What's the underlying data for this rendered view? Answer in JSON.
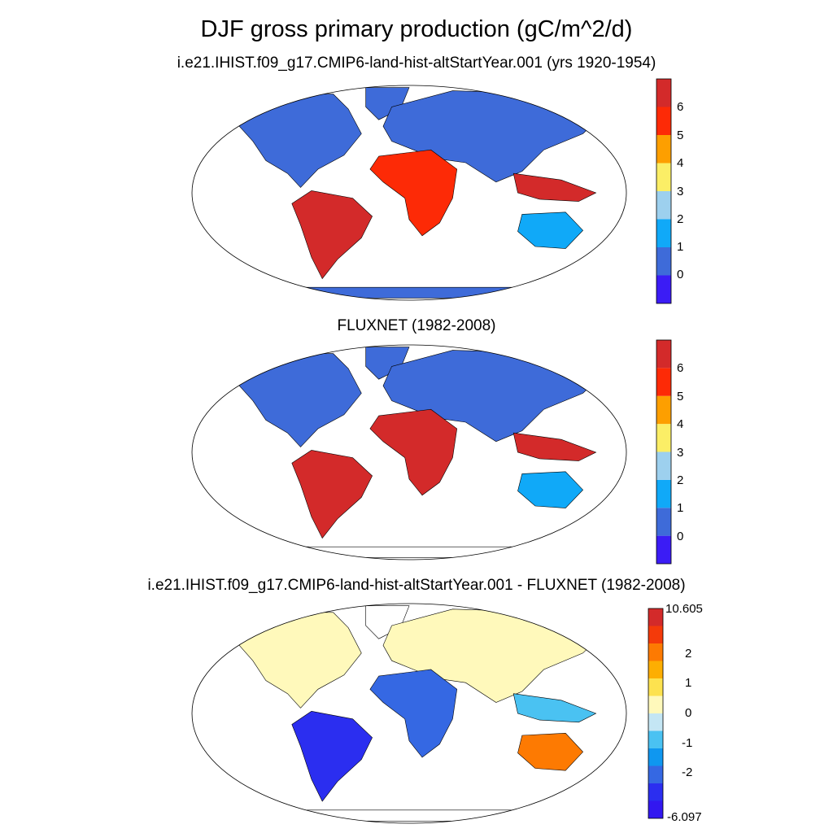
{
  "title": "DJF gross primary production (gC/m^2/d)",
  "panels": [
    {
      "title": "i.e21.IHIST.f09_g17.CMIP6-land-hist-altStartYear.001 (yrs 1920-1954)",
      "colorbar": {
        "colors": [
          "#3b1cf5",
          "#3e6bd9",
          "#10a9f8",
          "#9dd0ee",
          "#fbee66",
          "#fd9f00",
          "#fd2a06",
          "#d32a2a"
        ],
        "labels": [
          "0",
          "1",
          "2",
          "3",
          "4",
          "5",
          "6"
        ]
      },
      "scheme": "model"
    },
    {
      "title": "FLUXNET (1982-2008)",
      "colorbar": {
        "colors": [
          "#3b1cf5",
          "#3e6bd9",
          "#10a9f8",
          "#9dd0ee",
          "#fbee66",
          "#fd9f00",
          "#fd2a06",
          "#d32a2a"
        ],
        "labels": [
          "0",
          "1",
          "2",
          "3",
          "4",
          "5",
          "6"
        ]
      },
      "scheme": "obs"
    },
    {
      "title": "i.e21.IHIST.f09_g17.CMIP6-land-hist-altStartYear.001 - FLUXNET (1982-2008)",
      "colorbar": {
        "colors": [
          "#3217f0",
          "#2b2ef0",
          "#3568e3",
          "#0f97f0",
          "#4ac2f2",
          "#c4e6f4",
          "#fff9bb",
          "#fde24f",
          "#fdae02",
          "#fd7a02",
          "#f43a0a",
          "#d32a2a"
        ],
        "labels": [
          "-6.097",
          "-2",
          "-1",
          "0",
          "1",
          "2",
          "10.605"
        ]
      },
      "scheme": "diff"
    }
  ]
}
